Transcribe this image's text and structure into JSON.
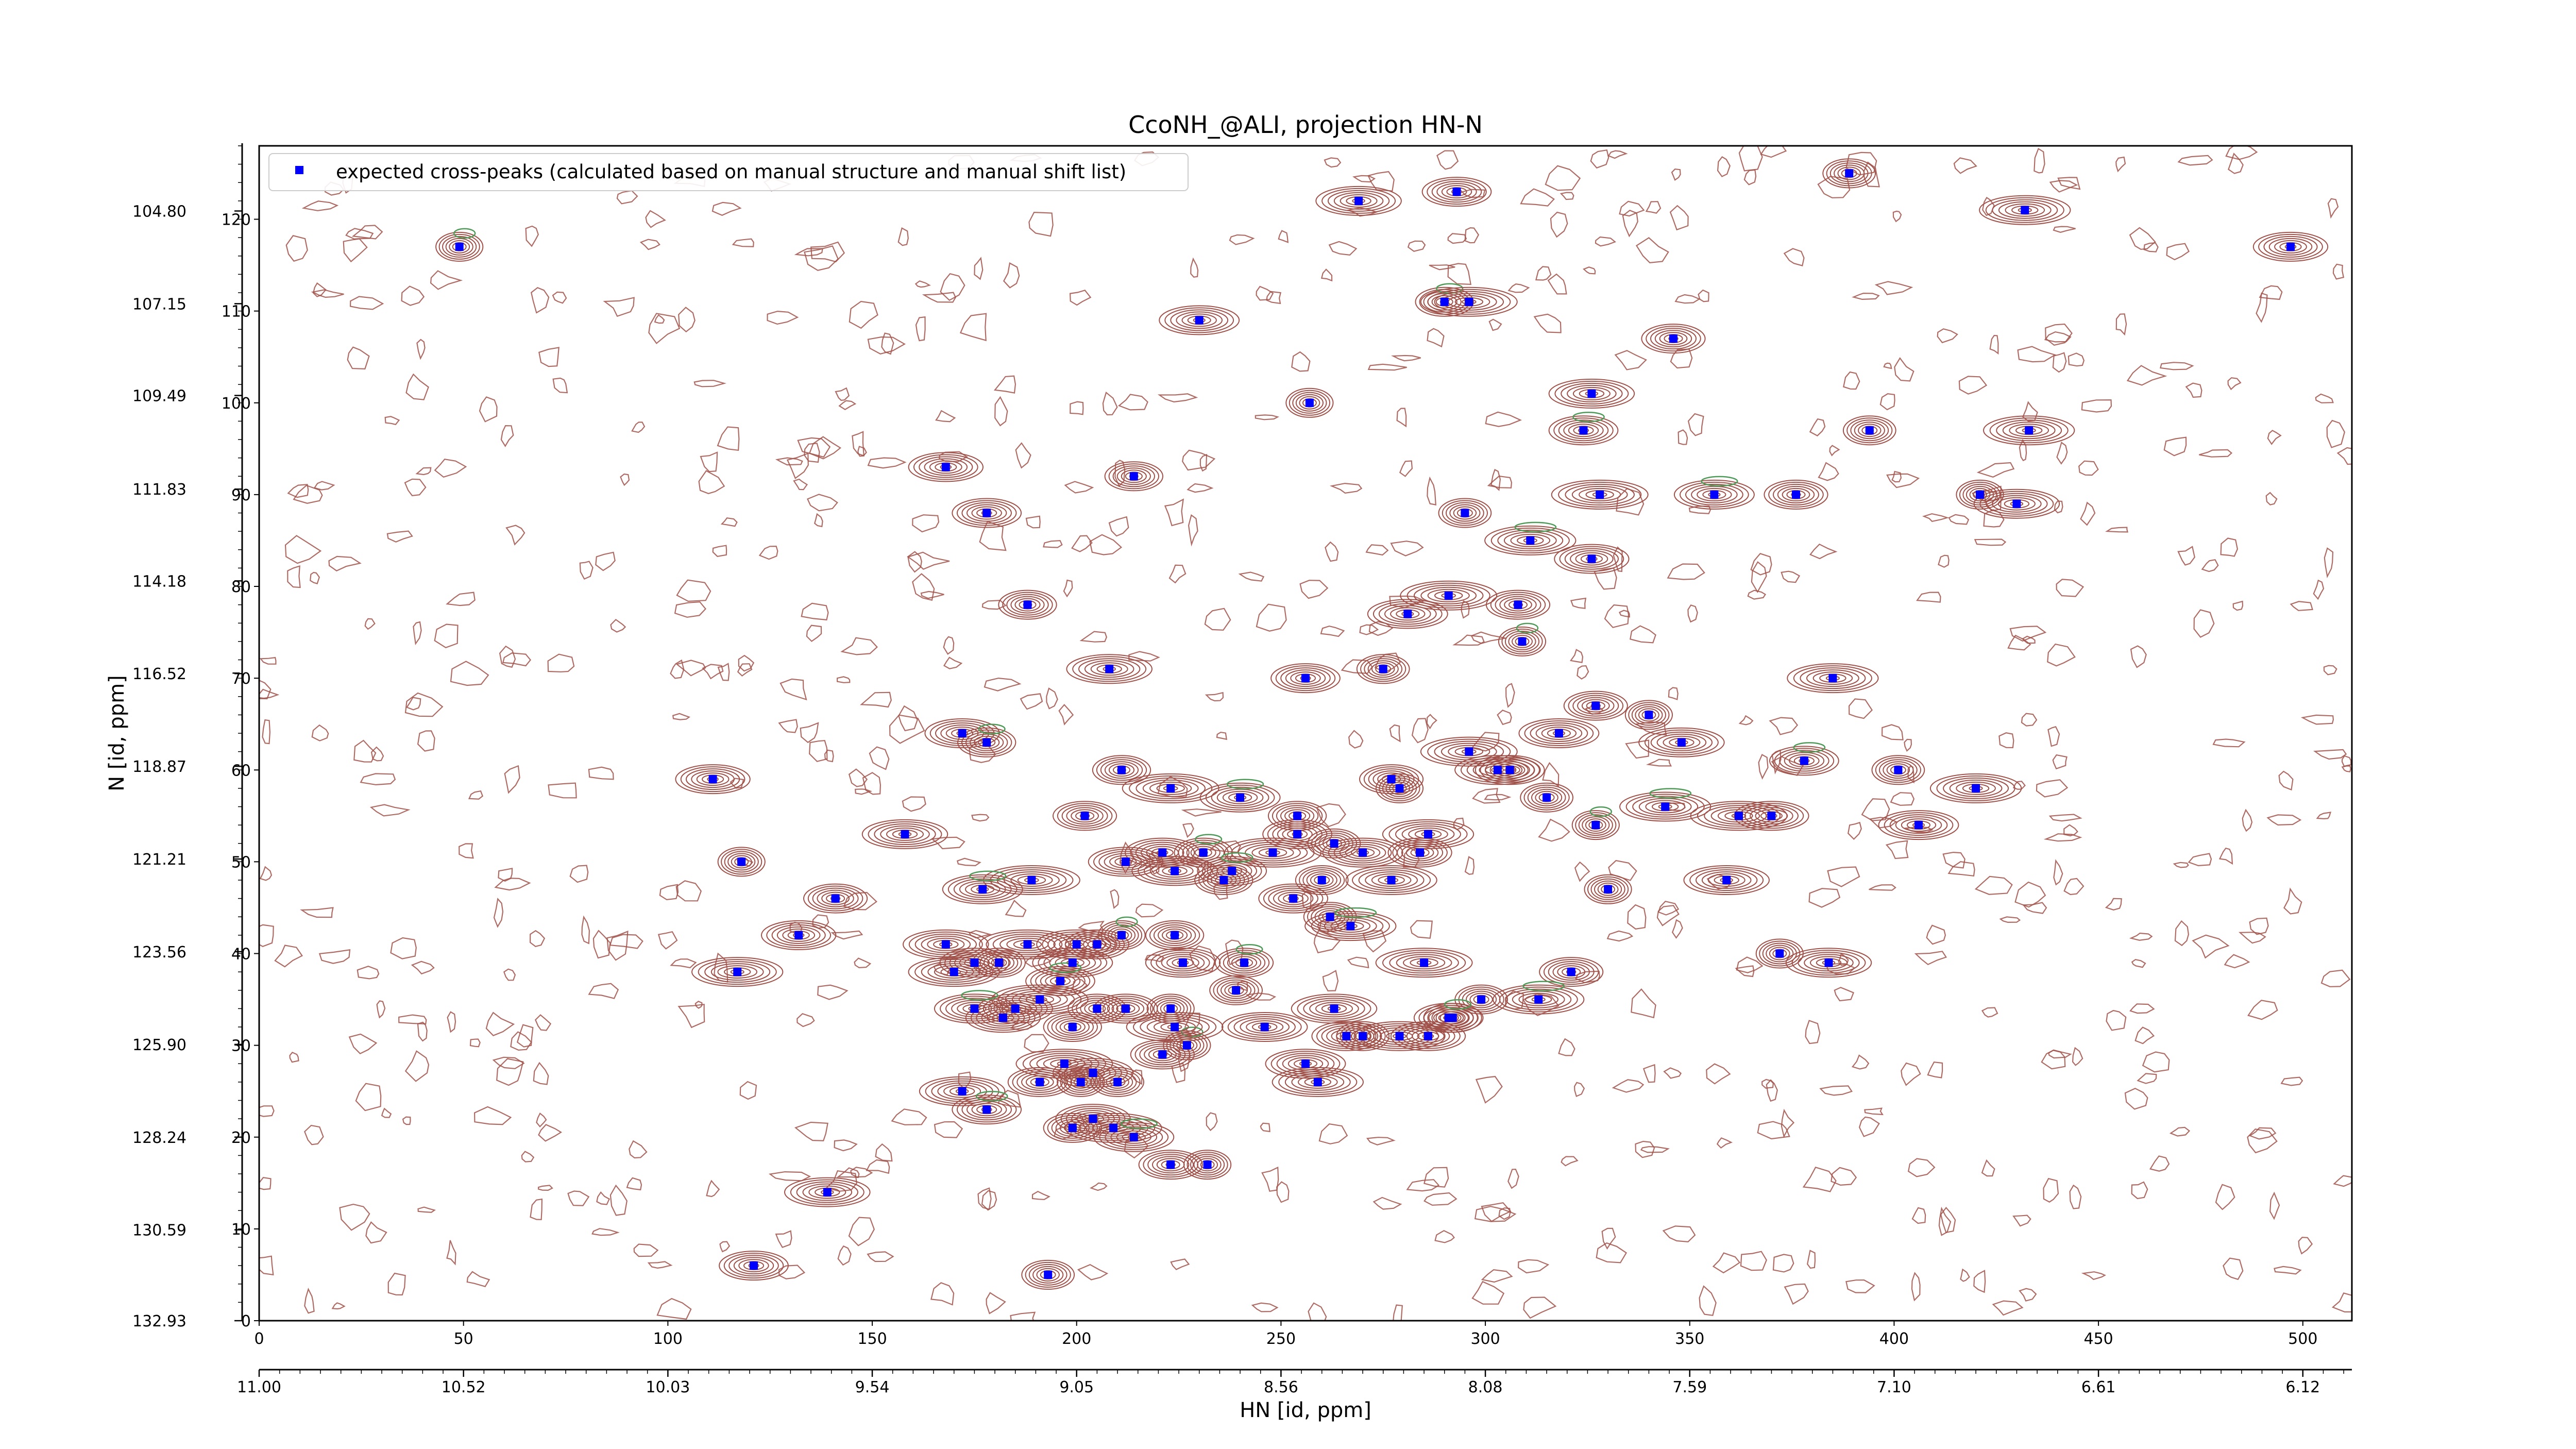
{
  "chart_data": {
    "type": "scatter",
    "title": "CcoNH_@ALI, projection HN-N",
    "xlabel": "HN [id, ppm]",
    "ylabel": "N [id, ppm]",
    "legend": {
      "label": "expected cross-peaks (calculated based on manual structure and manual shift list)",
      "placement": "top-left"
    },
    "colors": {
      "marker": "#0000ff",
      "contour_positive": "#a0524a",
      "contour_negative": "#4f9a58",
      "axes": "#000000"
    },
    "xlim_index": [
      0,
      512
    ],
    "ylim_index": [
      0,
      128
    ],
    "x_index_ticks": [
      0,
      50,
      100,
      150,
      200,
      250,
      300,
      350,
      400,
      450,
      500
    ],
    "y_index_ticks": [
      0,
      10,
      20,
      30,
      40,
      50,
      60,
      70,
      80,
      90,
      100,
      110,
      120
    ],
    "x_ppm_ticks": [
      {
        "index": 0,
        "label": "11.00"
      },
      {
        "index": 50,
        "label": "10.52"
      },
      {
        "index": 100,
        "label": "10.03"
      },
      {
        "index": 150,
        "label": "9.54"
      },
      {
        "index": 200,
        "label": "9.05"
      },
      {
        "index": 250,
        "label": "8.56"
      },
      {
        "index": 300,
        "label": "8.08"
      },
      {
        "index": 350,
        "label": "7.59"
      },
      {
        "index": 400,
        "label": "7.10"
      },
      {
        "index": 450,
        "label": "6.61"
      },
      {
        "index": 500,
        "label": "6.12"
      }
    ],
    "y_ppm_ticks": [
      {
        "index": 120.9,
        "label": "104.80"
      },
      {
        "index": 110.8,
        "label": "107.15"
      },
      {
        "index": 100.8,
        "label": "109.49"
      },
      {
        "index": 90.6,
        "label": "111.83"
      },
      {
        "index": 80.6,
        "label": "114.18"
      },
      {
        "index": 70.5,
        "label": "116.52"
      },
      {
        "index": 60.4,
        "label": "118.87"
      },
      {
        "index": 50.3,
        "label": "121.21"
      },
      {
        "index": 40.2,
        "label": "123.56"
      },
      {
        "index": 30.1,
        "label": "125.90"
      },
      {
        "index": 20.0,
        "label": "128.24"
      },
      {
        "index": 9.9,
        "label": "130.59"
      },
      {
        "index": 0.0,
        "label": "132.93"
      }
    ],
    "peaks": [
      [
        49,
        117
      ],
      [
        269,
        122
      ],
      [
        293,
        123
      ],
      [
        389,
        125
      ],
      [
        432,
        121
      ],
      [
        497,
        117
      ],
      [
        290,
        111
      ],
      [
        296,
        111
      ],
      [
        230,
        109
      ],
      [
        346,
        107
      ],
      [
        257,
        100
      ],
      [
        326,
        101
      ],
      [
        324,
        97
      ],
      [
        394,
        97
      ],
      [
        433,
        97
      ],
      [
        168,
        93
      ],
      [
        214,
        92
      ],
      [
        328,
        90
      ],
      [
        356,
        90
      ],
      [
        376,
        90
      ],
      [
        421,
        90
      ],
      [
        430,
        89
      ],
      [
        178,
        88
      ],
      [
        295,
        88
      ],
      [
        311,
        85
      ],
      [
        326,
        83
      ],
      [
        188,
        78
      ],
      [
        291,
        79
      ],
      [
        281,
        77
      ],
      [
        308,
        78
      ],
      [
        309,
        74
      ],
      [
        208,
        71
      ],
      [
        256,
        70
      ],
      [
        275,
        71
      ],
      [
        385,
        70
      ],
      [
        172,
        64
      ],
      [
        178,
        63
      ],
      [
        296,
        62
      ],
      [
        318,
        64
      ],
      [
        327,
        67
      ],
      [
        340,
        66
      ],
      [
        348,
        63
      ],
      [
        378,
        61
      ],
      [
        401,
        60
      ],
      [
        420,
        58
      ],
      [
        111,
        59
      ],
      [
        211,
        60
      ],
      [
        223,
        58
      ],
      [
        240,
        57
      ],
      [
        277,
        59
      ],
      [
        279,
        58
      ],
      [
        303,
        60
      ],
      [
        306,
        60
      ],
      [
        315,
        57
      ],
      [
        344,
        56
      ],
      [
        370,
        55
      ],
      [
        254,
        55
      ],
      [
        362,
        55
      ],
      [
        406,
        54
      ],
      [
        202,
        55
      ],
      [
        327,
        54
      ],
      [
        158,
        53
      ],
      [
        254,
        53
      ],
      [
        263,
        52
      ],
      [
        286,
        53
      ],
      [
        221,
        51
      ],
      [
        231,
        51
      ],
      [
        248,
        51
      ],
      [
        270,
        51
      ],
      [
        284,
        51
      ],
      [
        118,
        50
      ],
      [
        224,
        49
      ],
      [
        238,
        49
      ],
      [
        260,
        48
      ],
      [
        277,
        48
      ],
      [
        212,
        50
      ],
      [
        236,
        48
      ],
      [
        189,
        48
      ],
      [
        177,
        47
      ],
      [
        141,
        46
      ],
      [
        330,
        47
      ],
      [
        359,
        48
      ],
      [
        253,
        46
      ],
      [
        262,
        44
      ],
      [
        267,
        43
      ],
      [
        132,
        42
      ],
      [
        224,
        42
      ],
      [
        188,
        41
      ],
      [
        200,
        41
      ],
      [
        205,
        41
      ],
      [
        211,
        42
      ],
      [
        168,
        41
      ],
      [
        175,
        39
      ],
      [
        181,
        39
      ],
      [
        170,
        38
      ],
      [
        226,
        39
      ],
      [
        241,
        39
      ],
      [
        285,
        39
      ],
      [
        199,
        39
      ],
      [
        321,
        38
      ],
      [
        372,
        40
      ],
      [
        384,
        39
      ],
      [
        196,
        37
      ],
      [
        239,
        36
      ],
      [
        117,
        38
      ],
      [
        185,
        34
      ],
      [
        205,
        34
      ],
      [
        191,
        35
      ],
      [
        175,
        34
      ],
      [
        212,
        34
      ],
      [
        223,
        34
      ],
      [
        263,
        34
      ],
      [
        291,
        33
      ],
      [
        299,
        35
      ],
      [
        313,
        35
      ],
      [
        182,
        33
      ],
      [
        199,
        32
      ],
      [
        197,
        28
      ],
      [
        204,
        27
      ],
      [
        221,
        29
      ],
      [
        227,
        30
      ],
      [
        246,
        32
      ],
      [
        266,
        31
      ],
      [
        270,
        31
      ],
      [
        279,
        31
      ],
      [
        286,
        31
      ],
      [
        292,
        33
      ],
      [
        224,
        32
      ],
      [
        256,
        28
      ],
      [
        191,
        26
      ],
      [
        201,
        26
      ],
      [
        172,
        25
      ],
      [
        178,
        23
      ],
      [
        210,
        26
      ],
      [
        259,
        26
      ],
      [
        204,
        22
      ],
      [
        199,
        21
      ],
      [
        209,
        21
      ],
      [
        214,
        20
      ],
      [
        223,
        17
      ],
      [
        232,
        17
      ],
      [
        139,
        14
      ],
      [
        121,
        6
      ],
      [
        193,
        5
      ]
    ]
  }
}
